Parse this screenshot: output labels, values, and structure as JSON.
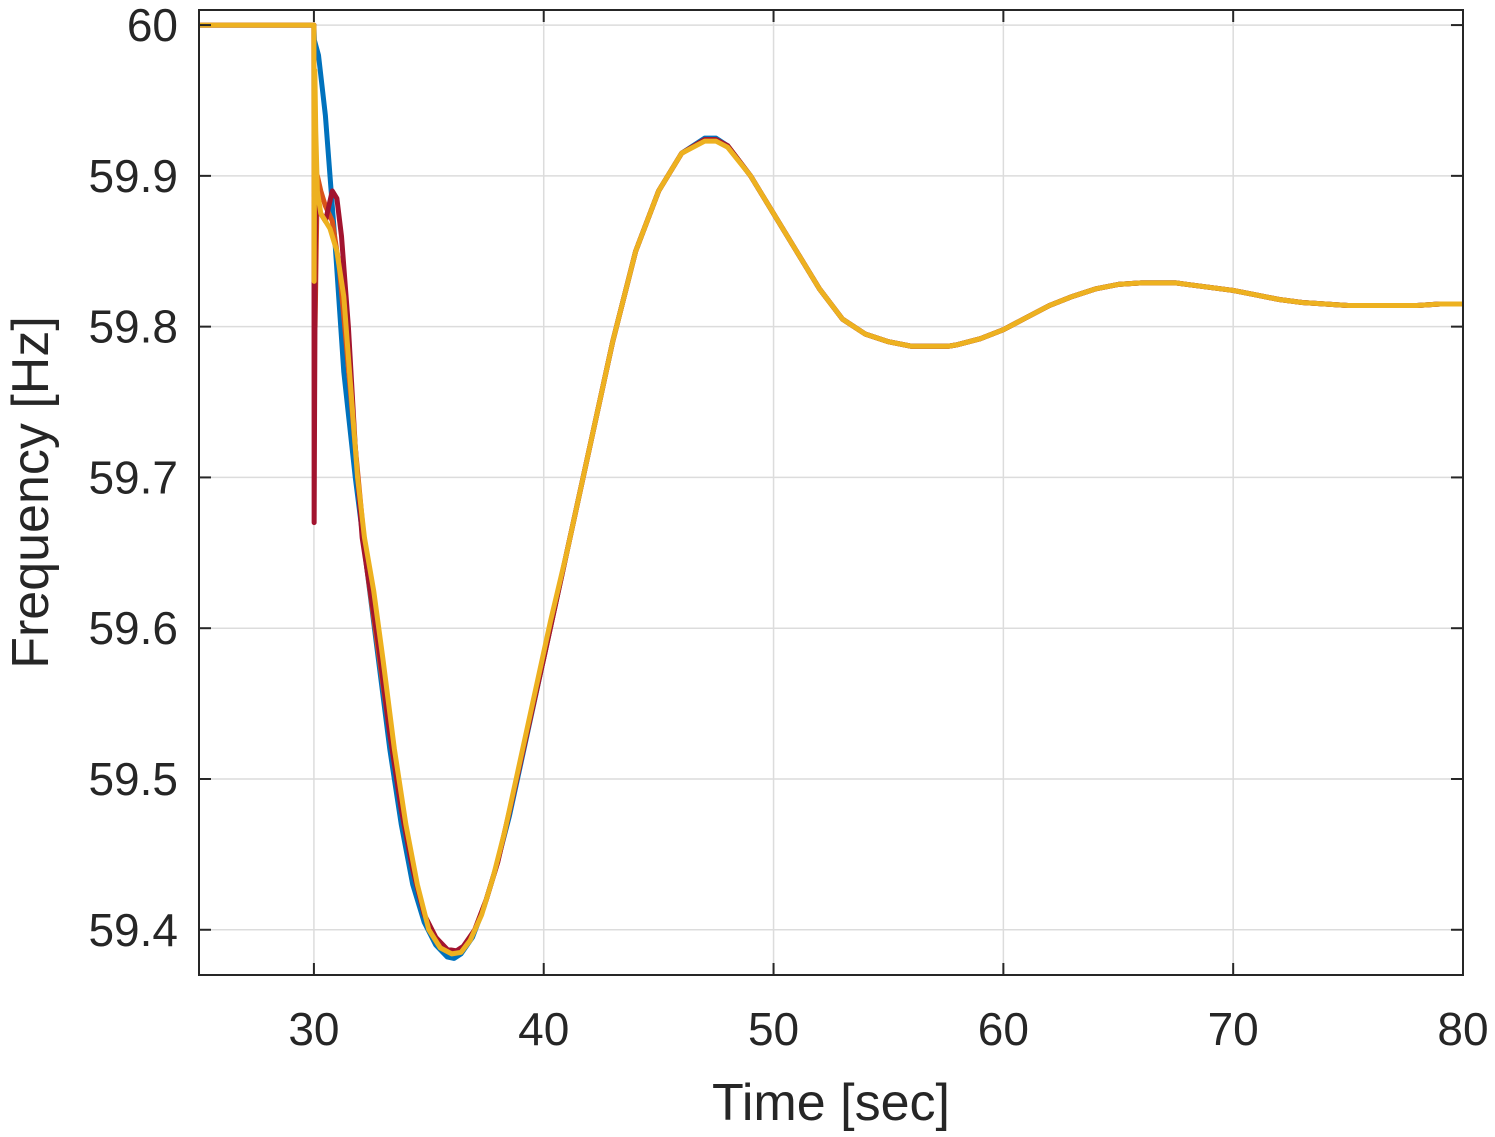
{
  "chart_data": {
    "type": "line",
    "title": "",
    "xlabel": "Time [sec]",
    "ylabel": "Frequency [Hz]",
    "xlim": [
      25,
      80
    ],
    "ylim": [
      59.37,
      60.01
    ],
    "xticks": [
      30,
      40,
      50,
      60,
      70,
      80
    ],
    "yticks": [
      59.4,
      59.5,
      59.6,
      59.7,
      59.8,
      59.9,
      60
    ],
    "ytick_labels": [
      "59.4",
      "59.5",
      "59.6",
      "59.7",
      "59.8",
      "59.9",
      "60"
    ],
    "grid": true,
    "legend": "none",
    "series": [
      {
        "color": "#0072BD",
        "x": [
          25,
          30,
          30.02,
          30.2,
          30.5,
          30.9,
          31.3,
          31.8,
          32.3,
          32.8,
          33.3,
          33.8,
          34.3,
          34.8,
          35.3,
          35.8,
          36.1,
          36.4,
          36.9,
          37.4,
          37.9,
          38.5,
          39.0,
          39.5,
          40.0,
          41,
          42,
          43,
          44,
          45,
          46,
          47,
          47.5,
          48,
          49,
          50,
          51,
          52,
          53,
          54,
          55,
          56,
          57,
          57.6,
          58,
          59,
          60,
          61,
          62,
          63,
          64,
          65,
          66,
          67,
          67.5,
          68,
          69,
          70,
          71,
          72,
          73,
          74,
          75,
          76,
          77,
          77.5,
          78,
          79,
          80
        ],
        "y": [
          60.0,
          60.0,
          59.99,
          59.98,
          59.94,
          59.86,
          59.77,
          59.7,
          59.64,
          59.58,
          59.52,
          59.47,
          59.43,
          59.405,
          59.39,
          59.382,
          59.381,
          59.384,
          59.395,
          59.415,
          59.44,
          59.475,
          59.51,
          59.545,
          59.58,
          59.65,
          59.72,
          59.79,
          59.85,
          59.89,
          59.915,
          59.925,
          59.925,
          59.92,
          59.9,
          59.875,
          59.85,
          59.825,
          59.805,
          59.795,
          59.79,
          59.787,
          59.787,
          59.787,
          59.788,
          59.792,
          59.798,
          59.806,
          59.814,
          59.82,
          59.825,
          59.828,
          59.829,
          59.829,
          59.829,
          59.828,
          59.826,
          59.824,
          59.821,
          59.818,
          59.816,
          59.815,
          59.814,
          59.814,
          59.814,
          59.814,
          59.814,
          59.815,
          59.815
        ]
      },
      {
        "color": "#D95319",
        "x": [
          25,
          30,
          30.01,
          30.05,
          30.15,
          30.3,
          30.5,
          30.8,
          31.1,
          31.4,
          31.8,
          32.3,
          32.8,
          33.3,
          33.8,
          34.3,
          34.8,
          35.3,
          35.8,
          36.2,
          36.5,
          37.0,
          37.5,
          38.0,
          38.5,
          39.0,
          39.5,
          40.0,
          41,
          42,
          43,
          44,
          45,
          46,
          47,
          47.5,
          48,
          49,
          50,
          51,
          52,
          53,
          54,
          55,
          56,
          57,
          57.6,
          58,
          59,
          60,
          61,
          62,
          63,
          64,
          65,
          66,
          67,
          67.5,
          68,
          69,
          70,
          71,
          72,
          73,
          74,
          75,
          76,
          77,
          77.5,
          78,
          79,
          80
        ],
        "y": [
          60.0,
          60.0,
          59.84,
          59.8,
          59.9,
          59.89,
          59.88,
          59.87,
          59.84,
          59.79,
          59.72,
          59.64,
          59.585,
          59.53,
          59.48,
          59.44,
          59.41,
          59.395,
          59.386,
          59.385,
          59.388,
          59.4,
          59.42,
          59.445,
          59.478,
          59.512,
          59.546,
          59.58,
          59.65,
          59.72,
          59.79,
          59.85,
          59.89,
          59.915,
          59.924,
          59.924,
          59.92,
          59.9,
          59.875,
          59.85,
          59.825,
          59.805,
          59.795,
          59.79,
          59.787,
          59.787,
          59.787,
          59.788,
          59.792,
          59.798,
          59.806,
          59.814,
          59.82,
          59.825,
          59.828,
          59.829,
          59.829,
          59.829,
          59.828,
          59.826,
          59.824,
          59.821,
          59.818,
          59.816,
          59.815,
          59.814,
          59.814,
          59.814,
          59.814,
          59.814,
          59.815,
          59.815
        ]
      },
      {
        "color": "#A2142F",
        "x": [
          25,
          30,
          30.01,
          30.03,
          30.06,
          30.1,
          30.3,
          30.5,
          30.65,
          30.8,
          31.0,
          31.2,
          31.5,
          31.8,
          32.1,
          32.4,
          32.8,
          33.3,
          33.8,
          34.3,
          34.8,
          35.3,
          35.8,
          36.2,
          36.5,
          37.0,
          37.5,
          38.0,
          38.5,
          39.0,
          39.5,
          40.0,
          41,
          42,
          43,
          44,
          45,
          46,
          47,
          47.5,
          48,
          49,
          50,
          51,
          52,
          53,
          54,
          55,
          56,
          57,
          57.6,
          58,
          59,
          60,
          61,
          62,
          63,
          64,
          65,
          66,
          67,
          67.5,
          68,
          69,
          70,
          71,
          72,
          73,
          74,
          75,
          76,
          77,
          77.5,
          78,
          79,
          80
        ],
        "y": [
          60.0,
          60.0,
          59.67,
          59.75,
          59.85,
          59.88,
          59.875,
          59.87,
          59.88,
          59.89,
          59.885,
          59.86,
          59.8,
          59.72,
          59.66,
          59.63,
          59.59,
          59.53,
          59.48,
          59.44,
          59.41,
          59.395,
          59.387,
          59.386,
          59.389,
          59.4,
          59.42,
          59.445,
          59.478,
          59.512,
          59.546,
          59.58,
          59.65,
          59.72,
          59.79,
          59.85,
          59.89,
          59.915,
          59.924,
          59.924,
          59.92,
          59.9,
          59.875,
          59.85,
          59.825,
          59.805,
          59.795,
          59.79,
          59.787,
          59.787,
          59.787,
          59.788,
          59.792,
          59.798,
          59.806,
          59.814,
          59.82,
          59.825,
          59.828,
          59.829,
          59.829,
          59.829,
          59.828,
          59.826,
          59.824,
          59.821,
          59.818,
          59.816,
          59.815,
          59.814,
          59.814,
          59.814,
          59.814,
          59.814,
          59.815,
          59.815
        ]
      },
      {
        "color": "#EDB120",
        "x": [
          25,
          30,
          30.01,
          30.04,
          30.08,
          30.15,
          30.3,
          30.5,
          30.7,
          31.0,
          31.3,
          31.6,
          31.9,
          32.2,
          32.6,
          33.0,
          33.5,
          34.0,
          34.5,
          35.0,
          35.5,
          36.0,
          36.4,
          36.8,
          37.3,
          37.8,
          38.3,
          38.8,
          39.3,
          39.8,
          40.3,
          41,
          42,
          43,
          44,
          45,
          46,
          47,
          47.5,
          48,
          49,
          50,
          51,
          52,
          53,
          54,
          55,
          56,
          57,
          57.6,
          58,
          59,
          60,
          61,
          62,
          63,
          64,
          65,
          66,
          67,
          67.5,
          68,
          69,
          70,
          71,
          72,
          73,
          74,
          75,
          76,
          77,
          77.5,
          78,
          79,
          80
        ],
        "y": [
          60.0,
          60.0,
          59.83,
          59.97,
          59.93,
          59.89,
          59.875,
          59.87,
          59.865,
          59.85,
          59.82,
          59.76,
          59.7,
          59.66,
          59.625,
          59.58,
          59.52,
          59.47,
          59.43,
          59.4,
          59.388,
          59.384,
          59.385,
          59.393,
          59.41,
          59.435,
          59.465,
          59.5,
          59.535,
          59.57,
          59.605,
          59.65,
          59.72,
          59.79,
          59.85,
          59.89,
          59.915,
          59.923,
          59.923,
          59.919,
          59.9,
          59.875,
          59.85,
          59.825,
          59.805,
          59.795,
          59.79,
          59.787,
          59.787,
          59.787,
          59.788,
          59.792,
          59.798,
          59.806,
          59.814,
          59.82,
          59.825,
          59.828,
          59.829,
          59.829,
          59.829,
          59.828,
          59.826,
          59.824,
          59.821,
          59.818,
          59.816,
          59.815,
          59.814,
          59.814,
          59.814,
          59.814,
          59.814,
          59.815,
          59.815
        ]
      }
    ]
  }
}
